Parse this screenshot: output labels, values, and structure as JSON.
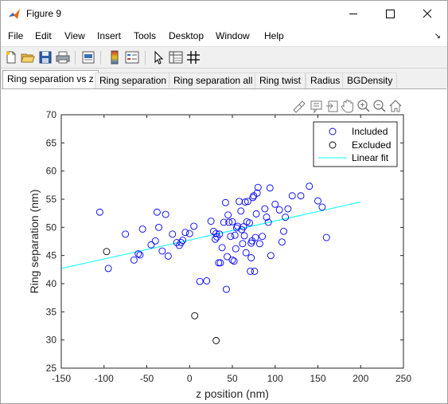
{
  "window": {
    "title": "Figure 9",
    "controls": {
      "minimize": "minimize",
      "maximize": "maximize",
      "close": "close"
    }
  },
  "menu": [
    "File",
    "Edit",
    "View",
    "Insert",
    "Tools",
    "Desktop",
    "Window",
    "Help"
  ],
  "toolbar_icons": [
    "new-figure-icon",
    "open-file-icon",
    "save-icon",
    "print-icon",
    "print-preview-icon",
    "colorbar-icon",
    "legend-icon",
    "pointer-icon",
    "property-inspector-icon",
    "grid-icon"
  ],
  "tabs": [
    {
      "label": "Ring separation vs z",
      "active": true
    },
    {
      "label": "Ring separation",
      "active": false
    },
    {
      "label": "Ring separation all",
      "active": false
    },
    {
      "label": "Ring twist",
      "active": false
    },
    {
      "label": "Radius",
      "active": false
    },
    {
      "label": "BGDensity",
      "active": false
    }
  ],
  "axes_toolbar_icons": [
    "brush-icon",
    "data-tips-icon",
    "export-icon",
    "pan-icon",
    "zoom-in-icon",
    "zoom-out-icon",
    "home-icon"
  ],
  "colors": {
    "included": "#0000ff",
    "excluded": "#000000",
    "fit": "#00ffff"
  },
  "chart_data": {
    "type": "scatter",
    "xlabel": "z position (nm)",
    "ylabel": "Ring separation (nm)",
    "xlim": [
      -150,
      250
    ],
    "ylim": [
      25,
      70
    ],
    "xticks": [
      -150,
      -100,
      -50,
      0,
      50,
      100,
      150,
      200,
      250
    ],
    "yticks": [
      25,
      30,
      35,
      40,
      45,
      50,
      55,
      60,
      65,
      70
    ],
    "grid": false,
    "legend": {
      "position": "top-right",
      "entries": [
        "Included",
        "Excluded",
        "Linear fit"
      ]
    },
    "series": [
      {
        "name": "Included",
        "marker": "circle",
        "x": [
          -105,
          -95,
          -75,
          -65,
          -60,
          -58,
          -55,
          -45,
          -40,
          -38,
          -36,
          -32,
          -28,
          -25,
          -20,
          -15,
          -10,
          -5,
          0,
          5,
          -12,
          -8,
          12,
          20,
          25,
          28,
          30,
          31,
          32,
          34,
          35,
          36,
          38,
          40,
          42,
          43,
          44,
          45,
          46,
          48,
          50,
          50,
          52,
          53,
          54,
          55,
          56,
          58,
          60,
          61,
          62,
          63,
          64,
          65,
          66,
          67,
          68,
          70,
          71,
          72,
          72,
          73,
          74,
          75,
          76,
          77,
          78,
          79,
          80,
          82,
          85,
          88,
          90,
          92,
          94,
          95,
          100,
          105,
          108,
          110,
          112,
          115,
          120,
          130,
          140,
          150,
          155,
          160
        ],
        "y": [
          52.7,
          42.7,
          48.8,
          44.2,
          45.3,
          45.1,
          49.7,
          46.9,
          47.6,
          52.7,
          50.0,
          45.8,
          52.3,
          44.9,
          48.8,
          47.3,
          47.3,
          49.1,
          48.9,
          50.2,
          46.8,
          47.7,
          40.4,
          40.5,
          51.1,
          49.3,
          47.9,
          48.9,
          48.3,
          43.7,
          48.8,
          43.7,
          46.4,
          50.9,
          54.4,
          39.0,
          44.8,
          52.2,
          50.9,
          48.4,
          51.0,
          44.2,
          44.0,
          48.6,
          46.2,
          49.9,
          50.2,
          54.6,
          52.9,
          49.6,
          47.1,
          50.1,
          48.5,
          54.5,
          45.5,
          51.0,
          54.6,
          50.8,
          42.2,
          47.2,
          44.6,
          47.6,
          55.3,
          55.6,
          42.2,
          48.2,
          52.4,
          56.1,
          57.1,
          47.1,
          48.4,
          53.3,
          51.8,
          50.9,
          57.0,
          45.0,
          54.1,
          53.1,
          47.4,
          49.3,
          51.8,
          53.3,
          55.6,
          55.6,
          57.3,
          54.7,
          53.6,
          48.2
        ]
      },
      {
        "name": "Excluded",
        "marker": "circle",
        "x": [
          -97,
          6,
          31
        ],
        "y": [
          45.7,
          34.3,
          29.9
        ]
      },
      {
        "name": "Linear fit",
        "marker": "line",
        "x": [
          -150,
          200
        ],
        "y": [
          42.7,
          54.5
        ]
      }
    ]
  }
}
